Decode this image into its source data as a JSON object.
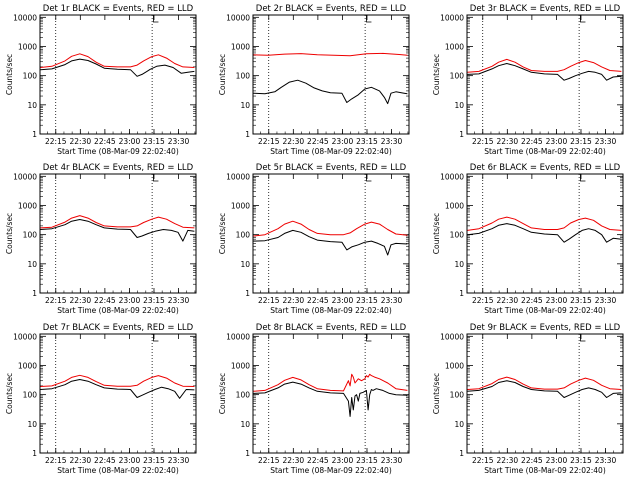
{
  "figure": {
    "series_colors": {
      "events": "#000000",
      "lld": "#ee0000"
    }
  },
  "chart_data": [
    {
      "type": "line",
      "title": "Det 1r BLACK = Events, RED = LLD",
      "xlabel": "Start Time (08-Mar-09 22:02:40)",
      "ylabel": "Counts/sec",
      "xticks": [
        "22:15",
        "22:30",
        "22:45",
        "23:00",
        "23:15",
        "23:30"
      ],
      "yticks": [
        "1",
        "10",
        "100",
        "1000",
        "10000"
      ],
      "yscale": "log",
      "ylim": [
        1,
        12000
      ],
      "xlim_minutes": [
        2.7,
        98
      ],
      "vlines_minutes": [
        12.3,
        71.2
      ],
      "series": [
        {
          "name": "Events",
          "color": "#000000",
          "x": [
            3,
            10,
            18,
            22,
            27,
            32,
            37,
            42,
            50,
            58,
            62,
            65,
            68,
            70,
            74,
            79,
            84,
            89,
            93,
            97
          ],
          "y": [
            160,
            170,
            240,
            320,
            370,
            330,
            250,
            180,
            165,
            160,
            95,
            110,
            140,
            165,
            210,
            230,
            190,
            120,
            130,
            140
          ]
        },
        {
          "name": "LLD",
          "color": "#ee0000",
          "x": [
            3,
            10,
            18,
            22,
            27,
            32,
            37,
            42,
            50,
            58,
            62,
            66,
            71,
            75,
            80,
            85,
            90,
            97
          ],
          "y": [
            190,
            210,
            320,
            460,
            560,
            450,
            290,
            210,
            200,
            200,
            230,
            320,
            450,
            520,
            400,
            260,
            200,
            190
          ]
        }
      ]
    },
    {
      "type": "line",
      "title": "Det 2r BLACK = Events, RED = LLD",
      "xlabel": "Start Time (08-Mar-09 22:02:40)",
      "ylabel": "Counts/sec",
      "xticks": [
        "22:15",
        "22:30",
        "22:45",
        "23:00",
        "23:15",
        "23:30"
      ],
      "yticks": [
        "1",
        "10",
        "100",
        "1000",
        "10000"
      ],
      "yscale": "log",
      "ylim": [
        1,
        12000
      ],
      "xlim_minutes": [
        2.7,
        98
      ],
      "vlines_minutes": [
        12.3,
        71.2
      ],
      "series": [
        {
          "name": "Events",
          "color": "#000000",
          "x": [
            3,
            10,
            16,
            20,
            25,
            30,
            35,
            40,
            45,
            50,
            57,
            60,
            63,
            67,
            71,
            75,
            80,
            83,
            85,
            87,
            90,
            95,
            97
          ],
          "y": [
            25,
            24,
            28,
            40,
            60,
            70,
            55,
            38,
            30,
            26,
            25,
            12,
            16,
            22,
            35,
            40,
            30,
            18,
            11,
            25,
            28,
            25,
            24
          ]
        },
        {
          "name": "LLD",
          "color": "#ee0000",
          "x": [
            3,
            12,
            22,
            32,
            42,
            52,
            62,
            72,
            82,
            92,
            97
          ],
          "y": [
            520,
            500,
            550,
            570,
            520,
            500,
            480,
            560,
            580,
            530,
            500
          ]
        }
      ]
    },
    {
      "type": "line",
      "title": "Det 3r BLACK = Events, RED = LLD",
      "xlabel": "Start Time (08-Mar-09 22:02:40)",
      "ylabel": "Counts/sec",
      "xticks": [
        "22:15",
        "22:30",
        "22:45",
        "23:00",
        "23:15",
        "23:30"
      ],
      "yticks": [
        "1",
        "10",
        "100",
        "1000",
        "10000"
      ],
      "yscale": "log",
      "ylim": [
        1,
        12000
      ],
      "xlim_minutes": [
        2.7,
        98
      ],
      "vlines_minutes": [
        12.3,
        71.2
      ],
      "series": [
        {
          "name": "Events",
          "color": "#000000",
          "x": [
            3,
            10,
            18,
            22,
            27,
            32,
            37,
            42,
            50,
            58,
            62,
            65,
            69,
            73,
            77,
            81,
            85,
            88,
            92,
            97
          ],
          "y": [
            110,
            115,
            170,
            220,
            260,
            220,
            170,
            130,
            115,
            110,
            70,
            80,
            100,
            120,
            140,
            130,
            110,
            70,
            90,
            95
          ]
        },
        {
          "name": "LLD",
          "color": "#ee0000",
          "x": [
            3,
            10,
            18,
            22,
            27,
            32,
            37,
            42,
            50,
            58,
            62,
            66,
            71,
            75,
            80,
            85,
            90,
            97
          ],
          "y": [
            130,
            140,
            210,
            290,
            360,
            290,
            200,
            150,
            140,
            140,
            160,
            210,
            280,
            330,
            280,
            200,
            150,
            140
          ]
        }
      ]
    },
    {
      "type": "line",
      "title": "Det 4r BLACK = Events, RED = LLD",
      "xlabel": "Start Time (08-Mar-09 22:02:40)",
      "ylabel": "Counts/sec",
      "xticks": [
        "22:15",
        "22:30",
        "22:45",
        "23:00",
        "23:15",
        "23:30"
      ],
      "yticks": [
        "1",
        "10",
        "100",
        "1000",
        "10000"
      ],
      "yscale": "log",
      "ylim": [
        1,
        12000
      ],
      "xlim_minutes": [
        2.7,
        98
      ],
      "vlines_minutes": [
        12.3,
        71.2
      ],
      "series": [
        {
          "name": "Events",
          "color": "#000000",
          "x": [
            3,
            10,
            18,
            22,
            27,
            32,
            37,
            42,
            50,
            58,
            62,
            65,
            69,
            73,
            78,
            83,
            87,
            90,
            93,
            97
          ],
          "y": [
            150,
            160,
            220,
            290,
            330,
            290,
            220,
            170,
            155,
            150,
            80,
            90,
            110,
            130,
            150,
            140,
            120,
            60,
            140,
            130
          ]
        },
        {
          "name": "LLD",
          "color": "#ee0000",
          "x": [
            3,
            10,
            18,
            22,
            27,
            32,
            37,
            42,
            50,
            58,
            62,
            66,
            71,
            75,
            80,
            85,
            90,
            97
          ],
          "y": [
            170,
            180,
            270,
            370,
            450,
            370,
            260,
            200,
            185,
            185,
            200,
            260,
            340,
            400,
            340,
            240,
            180,
            170
          ]
        }
      ]
    },
    {
      "type": "line",
      "title": "Det 5r BLACK = Events, RED = LLD",
      "xlabel": "Start Time (08-Mar-09 22:02:40)",
      "ylabel": "Counts/sec",
      "xticks": [
        "22:15",
        "22:30",
        "22:45",
        "23:00",
        "23:15",
        "23:30"
      ],
      "yticks": [
        "1",
        "10",
        "100",
        "1000",
        "10000"
      ],
      "yscale": "log",
      "ylim": [
        1,
        12000
      ],
      "xlim_minutes": [
        2.7,
        98
      ],
      "vlines_minutes": [
        12.3,
        71.2
      ],
      "series": [
        {
          "name": "Events",
          "color": "#000000",
          "x": [
            3,
            10,
            18,
            22,
            27,
            32,
            37,
            42,
            50,
            57,
            60,
            63,
            67,
            71,
            75,
            79,
            83,
            85,
            87,
            90,
            97
          ],
          "y": [
            60,
            62,
            80,
            110,
            140,
            120,
            85,
            65,
            58,
            55,
            30,
            38,
            45,
            55,
            60,
            50,
            40,
            20,
            45,
            50,
            48
          ]
        },
        {
          "name": "LLD",
          "color": "#ee0000",
          "x": [
            3,
            10,
            18,
            22,
            27,
            32,
            37,
            42,
            50,
            58,
            62,
            66,
            71,
            75,
            80,
            85,
            90,
            97
          ],
          "y": [
            90,
            100,
            160,
            230,
            290,
            230,
            150,
            110,
            100,
            100,
            115,
            160,
            230,
            270,
            230,
            150,
            105,
            95
          ]
        }
      ]
    },
    {
      "type": "line",
      "title": "Det 6r BLACK = Events, RED = LLD",
      "xlabel": "Start Time (08-Mar-09 22:02:40)",
      "ylabel": "Counts/sec",
      "xticks": [
        "22:15",
        "22:30",
        "22:45",
        "23:00",
        "23:15",
        "23:30"
      ],
      "yticks": [
        "1",
        "10",
        "100",
        "1000",
        "10000"
      ],
      "yscale": "log",
      "ylim": [
        1,
        12000
      ],
      "xlim_minutes": [
        2.7,
        98
      ],
      "vlines_minutes": [
        12.3,
        71.2
      ],
      "series": [
        {
          "name": "Events",
          "color": "#000000",
          "x": [
            3,
            10,
            18,
            22,
            27,
            32,
            37,
            42,
            50,
            58,
            62,
            65,
            69,
            73,
            77,
            81,
            85,
            88,
            92,
            97
          ],
          "y": [
            100,
            110,
            160,
            210,
            240,
            210,
            160,
            120,
            105,
            100,
            55,
            70,
            100,
            140,
            160,
            140,
            100,
            55,
            75,
            70
          ]
        },
        {
          "name": "LLD",
          "color": "#ee0000",
          "x": [
            3,
            10,
            18,
            22,
            27,
            32,
            37,
            42,
            50,
            58,
            62,
            66,
            71,
            75,
            80,
            85,
            90,
            97
          ],
          "y": [
            140,
            160,
            250,
            340,
            400,
            340,
            240,
            170,
            150,
            150,
            170,
            250,
            330,
            370,
            310,
            200,
            150,
            140
          ]
        }
      ]
    },
    {
      "type": "line",
      "title": "Det 7r BLACK = Events, RED = LLD",
      "xlabel": "Start Time (08-Mar-09 22:02:40)",
      "ylabel": "Counts/sec",
      "xticks": [
        "22:15",
        "22:30",
        "22:45",
        "23:00",
        "23:15",
        "23:30"
      ],
      "yticks": [
        "1",
        "10",
        "100",
        "1000",
        "10000"
      ],
      "yscale": "log",
      "ylim": [
        1,
        12000
      ],
      "xlim_minutes": [
        2.7,
        98
      ],
      "vlines_minutes": [
        12.3,
        71.2
      ],
      "series": [
        {
          "name": "Events",
          "color": "#000000",
          "x": [
            3,
            10,
            18,
            22,
            27,
            32,
            37,
            42,
            50,
            58,
            62,
            65,
            69,
            73,
            77,
            81,
            85,
            88,
            92,
            97
          ],
          "y": [
            150,
            160,
            220,
            290,
            330,
            290,
            220,
            170,
            155,
            150,
            80,
            95,
            120,
            150,
            180,
            160,
            130,
            75,
            150,
            145
          ]
        },
        {
          "name": "LLD",
          "color": "#ee0000",
          "x": [
            3,
            10,
            18,
            22,
            27,
            32,
            37,
            42,
            50,
            58,
            62,
            66,
            71,
            75,
            80,
            85,
            90,
            97
          ],
          "y": [
            190,
            200,
            290,
            390,
            460,
            390,
            280,
            210,
            195,
            195,
            210,
            290,
            390,
            450,
            370,
            250,
            195,
            190
          ]
        }
      ]
    },
    {
      "type": "line",
      "title": "Det 8r BLACK = Events, RED = LLD",
      "xlabel": "Start Time (08-Mar-09 22:02:40)",
      "ylabel": "Counts/sec",
      "xticks": [
        "22:15",
        "22:30",
        "22:45",
        "23:00",
        "23:15",
        "23:30"
      ],
      "yticks": [
        "1",
        "10",
        "100",
        "1000",
        "10000"
      ],
      "yscale": "log",
      "ylim": [
        1,
        12000
      ],
      "xlim_minutes": [
        2.7,
        98
      ],
      "vlines_minutes": [
        12.3,
        71.2
      ],
      "series": [
        {
          "name": "Events",
          "color": "#000000",
          "x": [
            3,
            10,
            18,
            22,
            27,
            32,
            37,
            42,
            50,
            58,
            61,
            62,
            63,
            64,
            65,
            66,
            67,
            68,
            70,
            72,
            73,
            74,
            75,
            76,
            78,
            82,
            86,
            90,
            97
          ],
          "y": [
            110,
            115,
            170,
            230,
            270,
            230,
            170,
            130,
            115,
            110,
            60,
            18,
            80,
            30,
            90,
            100,
            60,
            110,
            120,
            140,
            30,
            100,
            150,
            140,
            160,
            140,
            110,
            100,
            95
          ]
        },
        {
          "name": "LLD",
          "color": "#ee0000",
          "x": [
            3,
            10,
            18,
            22,
            27,
            32,
            37,
            42,
            50,
            58,
            61,
            62,
            63,
            64,
            65,
            67,
            69,
            71,
            72,
            73,
            74,
            75,
            77,
            80,
            85,
            90,
            97
          ],
          "y": [
            130,
            140,
            220,
            310,
            390,
            320,
            220,
            160,
            140,
            135,
            300,
            200,
            500,
            400,
            250,
            350,
            300,
            350,
            450,
            400,
            500,
            450,
            400,
            350,
            250,
            160,
            140
          ]
        }
      ]
    },
    {
      "type": "line",
      "title": "Det 9r BLACK = Events, RED = LLD",
      "xlabel": "Start Time (08-Mar-09 22:02:40)",
      "ylabel": "Counts/sec",
      "xticks": [
        "22:15",
        "22:30",
        "22:45",
        "23:00",
        "23:15",
        "23:30"
      ],
      "yticks": [
        "1",
        "10",
        "100",
        "1000",
        "10000"
      ],
      "yscale": "log",
      "ylim": [
        1,
        12000
      ],
      "xlim_minutes": [
        2.7,
        98
      ],
      "vlines_minutes": [
        12.3,
        71.2
      ],
      "series": [
        {
          "name": "Events",
          "color": "#000000",
          "x": [
            3,
            10,
            18,
            22,
            27,
            32,
            37,
            42,
            50,
            58,
            62,
            65,
            69,
            73,
            77,
            81,
            85,
            88,
            92,
            97
          ],
          "y": [
            130,
            140,
            190,
            260,
            300,
            260,
            190,
            150,
            135,
            130,
            80,
            95,
            120,
            150,
            170,
            150,
            120,
            80,
            110,
            115
          ]
        },
        {
          "name": "LLD",
          "color": "#ee0000",
          "x": [
            3,
            10,
            18,
            22,
            27,
            32,
            37,
            42,
            50,
            58,
            62,
            66,
            71,
            75,
            80,
            85,
            90,
            97
          ],
          "y": [
            150,
            160,
            240,
            330,
            400,
            330,
            230,
            170,
            155,
            155,
            170,
            230,
            310,
            370,
            310,
            210,
            160,
            150
          ]
        }
      ]
    }
  ]
}
